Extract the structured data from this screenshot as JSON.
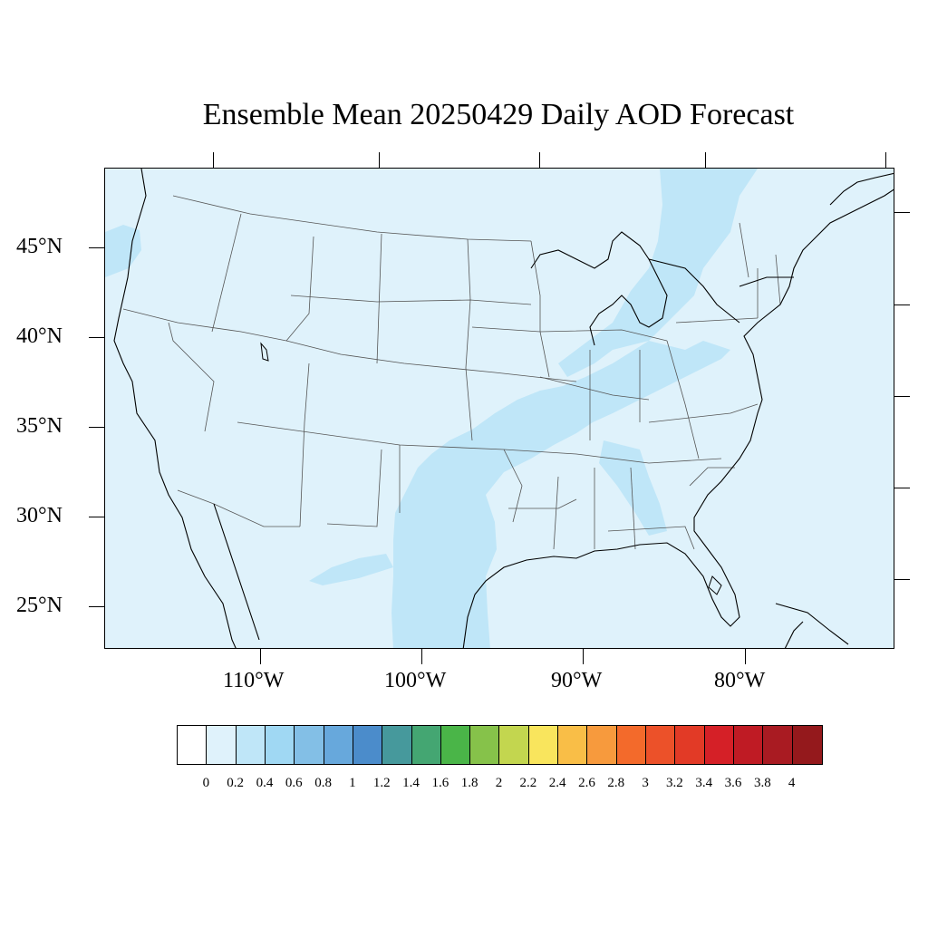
{
  "title": "Ensemble Mean 20250429 Daily AOD Forecast",
  "lat_labels": [
    "45°N",
    "40°N",
    "35°N",
    "30°N",
    "25°N"
  ],
  "lon_labels": [
    "110°W",
    "100°W",
    "90°W",
    "80°W"
  ],
  "colorbar": {
    "labels": [
      "0",
      "0.2",
      "0.4",
      "0.6",
      "0.8",
      "1",
      "1.2",
      "1.4",
      "1.6",
      "1.8",
      "2",
      "2.2",
      "2.4",
      "2.6",
      "2.8",
      "3",
      "3.2",
      "3.4",
      "3.6",
      "3.8",
      "4"
    ],
    "colors": [
      "#ffffff",
      "#dff2fb",
      "#bfe6f8",
      "#a0d8f3",
      "#83bfe6",
      "#67a8dc",
      "#4b8ccb",
      "#46999c",
      "#44a672",
      "#4ab548",
      "#86c24a",
      "#c3d64f",
      "#f9e55d",
      "#f9be47",
      "#f79a3d",
      "#f36a2b",
      "#ec5129",
      "#e23a26",
      "#d52027",
      "#bf1b24",
      "#a91b22",
      "#94191c"
    ]
  },
  "map": {
    "background_color": "#dff2fb",
    "plume_color": "#bfe6f8"
  }
}
